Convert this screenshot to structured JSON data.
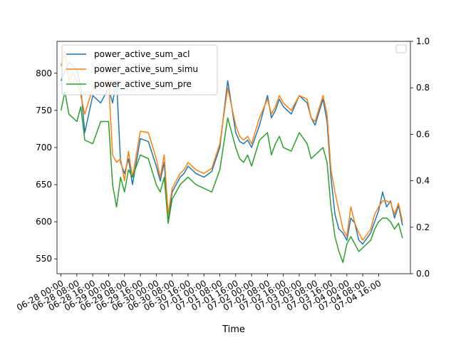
{
  "chart_data": {
    "type": "line",
    "xlabel": "Time",
    "x_tick_labels": [
      "06-28 00:00",
      "06-28 08:00",
      "06-28 16:00",
      "06-29 00:00",
      "06-29 08:00",
      "06-29 16:00",
      "06-30 00:00",
      "06-30 08:00",
      "06-30 16:00",
      "07-01 00:00",
      "07-01 08:00",
      "07-01 16:00",
      "07-02 00:00",
      "07-02 08:00",
      "07-02 16:00",
      "07-03 00:00",
      "07-03 08:00",
      "07-03 16:00",
      "07-04 00:00",
      "07-04 08:00",
      "07-04 16:00"
    ],
    "x_hours": [
      0,
      8,
      16,
      24,
      32,
      40,
      48,
      56,
      64,
      72,
      80,
      88,
      96,
      104,
      112,
      120,
      128,
      136,
      144,
      152,
      160
    ],
    "x_range_hours": [
      -2,
      176
    ],
    "ylim_left": [
      530,
      843
    ],
    "yticks_left": [
      550,
      600,
      650,
      700,
      750,
      800
    ],
    "ylim_right": [
      0.0,
      1.0
    ],
    "yticks_right": [
      "0.0",
      "0.2",
      "0.4",
      "0.6",
      "0.8",
      "1.0"
    ],
    "legend_position": "upper left",
    "series": [
      {
        "name": "power_active_sum_acl",
        "color": "#1f77b4",
        "x_hours": [
          0,
          4,
          8,
          10,
          12,
          16,
          20,
          24,
          26,
          28,
          30,
          32,
          34,
          36,
          40,
          44,
          48,
          50,
          52,
          54,
          56,
          58,
          60,
          62,
          64,
          68,
          72,
          76,
          80,
          84,
          88,
          90,
          92,
          94,
          96,
          100,
          104,
          106,
          108,
          110,
          112,
          116,
          120,
          124,
          126,
          128,
          132,
          134,
          136,
          138,
          140,
          142,
          144,
          146,
          148,
          150,
          152,
          156,
          158,
          160,
          162,
          164,
          166,
          168,
          170,
          172
        ],
        "values": [
          790,
          815,
          805,
          780,
          720,
          770,
          760,
          780,
          760,
          790,
          680,
          665,
          685,
          650,
          712,
          708,
          675,
          655,
          680,
          600,
          640,
          650,
          660,
          665,
          675,
          665,
          660,
          668,
          700,
          790,
          720,
          708,
          705,
          710,
          700,
          730,
          770,
          740,
          750,
          765,
          755,
          745,
          770,
          760,
          740,
          730,
          765,
          735,
          660,
          610,
          590,
          585,
          575,
          605,
          598,
          575,
          570,
          585,
          600,
          615,
          640,
          620,
          628,
          605,
          622,
          595
        ]
      },
      {
        "name": "power_active_sum_simu",
        "color": "#ff7f0e",
        "x_hours": [
          0,
          2,
          4,
          6,
          8,
          10,
          12,
          16,
          20,
          24,
          26,
          28,
          30,
          32,
          34,
          36,
          40,
          44,
          48,
          50,
          52,
          54,
          56,
          58,
          60,
          62,
          64,
          68,
          72,
          76,
          80,
          84,
          88,
          90,
          92,
          94,
          96,
          100,
          104,
          106,
          108,
          110,
          112,
          116,
          120,
          124,
          126,
          128,
          132,
          134,
          136,
          138,
          140,
          142,
          144,
          146,
          148,
          150,
          152,
          156,
          158,
          160,
          162,
          164,
          166,
          168,
          170,
          172
        ],
        "values": [
          810,
          830,
          790,
          800,
          790,
          770,
          745,
          780,
          785,
          790,
          690,
          680,
          685,
          655,
          695,
          660,
          722,
          720,
          685,
          660,
          690,
          610,
          645,
          655,
          665,
          670,
          680,
          670,
          665,
          672,
          705,
          780,
          730,
          715,
          710,
          715,
          705,
          740,
          765,
          745,
          755,
          770,
          760,
          750,
          770,
          765,
          740,
          735,
          770,
          745,
          670,
          640,
          615,
          590,
          580,
          620,
          598,
          585,
          575,
          590,
          610,
          620,
          628,
          628,
          626,
          610,
          625,
          600
        ]
      },
      {
        "name": "power_active_sum_pre",
        "color": "#2ca02c",
        "x_hours": [
          0,
          2,
          4,
          6,
          8,
          10,
          12,
          16,
          20,
          24,
          26,
          28,
          30,
          32,
          34,
          36,
          40,
          44,
          48,
          50,
          52,
          54,
          56,
          58,
          60,
          62,
          64,
          68,
          72,
          76,
          80,
          84,
          88,
          90,
          92,
          94,
          96,
          100,
          104,
          106,
          108,
          110,
          112,
          116,
          120,
          124,
          126,
          128,
          132,
          134,
          136,
          138,
          140,
          142,
          144,
          146,
          148,
          150,
          152,
          156,
          158,
          160,
          162,
          164,
          166,
          168,
          170,
          172
        ],
        "values": [
          750,
          775,
          745,
          740,
          735,
          755,
          710,
          705,
          735,
          735,
          650,
          620,
          660,
          640,
          670,
          660,
          690,
          685,
          650,
          640,
          660,
          598,
          630,
          640,
          650,
          655,
          660,
          650,
          645,
          640,
          670,
          740,
          700,
          685,
          680,
          690,
          675,
          710,
          720,
          690,
          705,
          715,
          700,
          695,
          720,
          705,
          685,
          690,
          700,
          680,
          620,
          580,
          560,
          545,
          570,
          580,
          570,
          560,
          565,
          575,
          590,
          600,
          605,
          605,
          600,
          590,
          598,
          578
        ]
      }
    ]
  }
}
